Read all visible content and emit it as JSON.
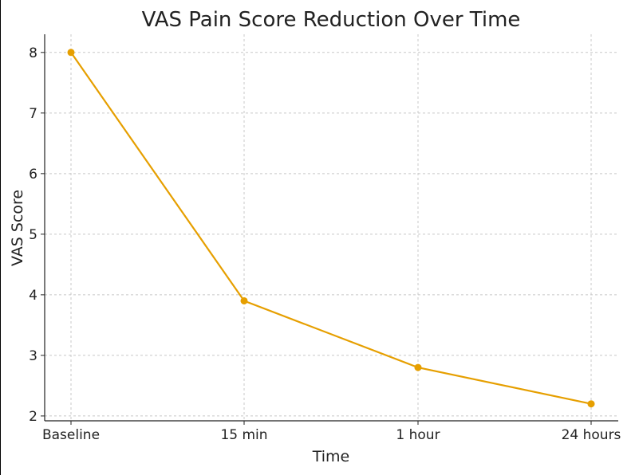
{
  "chart_data": {
    "type": "line",
    "title": "VAS Pain Score Reduction Over Time",
    "xlabel": "Time",
    "ylabel": "VAS Score",
    "categories": [
      "Baseline",
      "15 min",
      "1 hour",
      "24 hours"
    ],
    "values": [
      8,
      3.9,
      2.8,
      2.2
    ],
    "ylim": [
      1.92,
      8.3
    ],
    "yticks": [
      2,
      3,
      4,
      5,
      6,
      7,
      8
    ],
    "grid": true,
    "color": "#e69f00",
    "marker": "circle"
  }
}
